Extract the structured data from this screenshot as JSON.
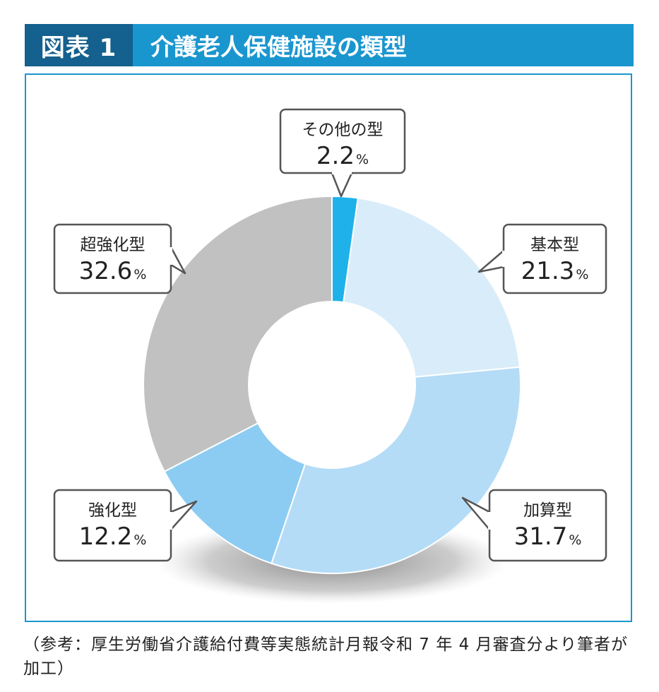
{
  "header": {
    "tag": "図表 1",
    "title": "介護老人保健施設の類型"
  },
  "chart_data": {
    "type": "pie",
    "donut": true,
    "categories": [
      "その他の型",
      "基本型",
      "加算型",
      "強化型",
      "超強化型"
    ],
    "values": [
      2.2,
      21.3,
      31.7,
      12.2,
      32.6
    ],
    "unit": "%",
    "colors": [
      "#1fb2ea",
      "#d9ecf9",
      "#b4dcf6",
      "#8cccf2",
      "#c1c1c1"
    ],
    "value_labels": [
      "2.2",
      "21.3",
      "31.7",
      "12.2",
      "32.6"
    ]
  },
  "source": "（参考：厚生労働省介護給付費等実態統計月報令和 7 年 4 月審査分より筆者が加工）"
}
